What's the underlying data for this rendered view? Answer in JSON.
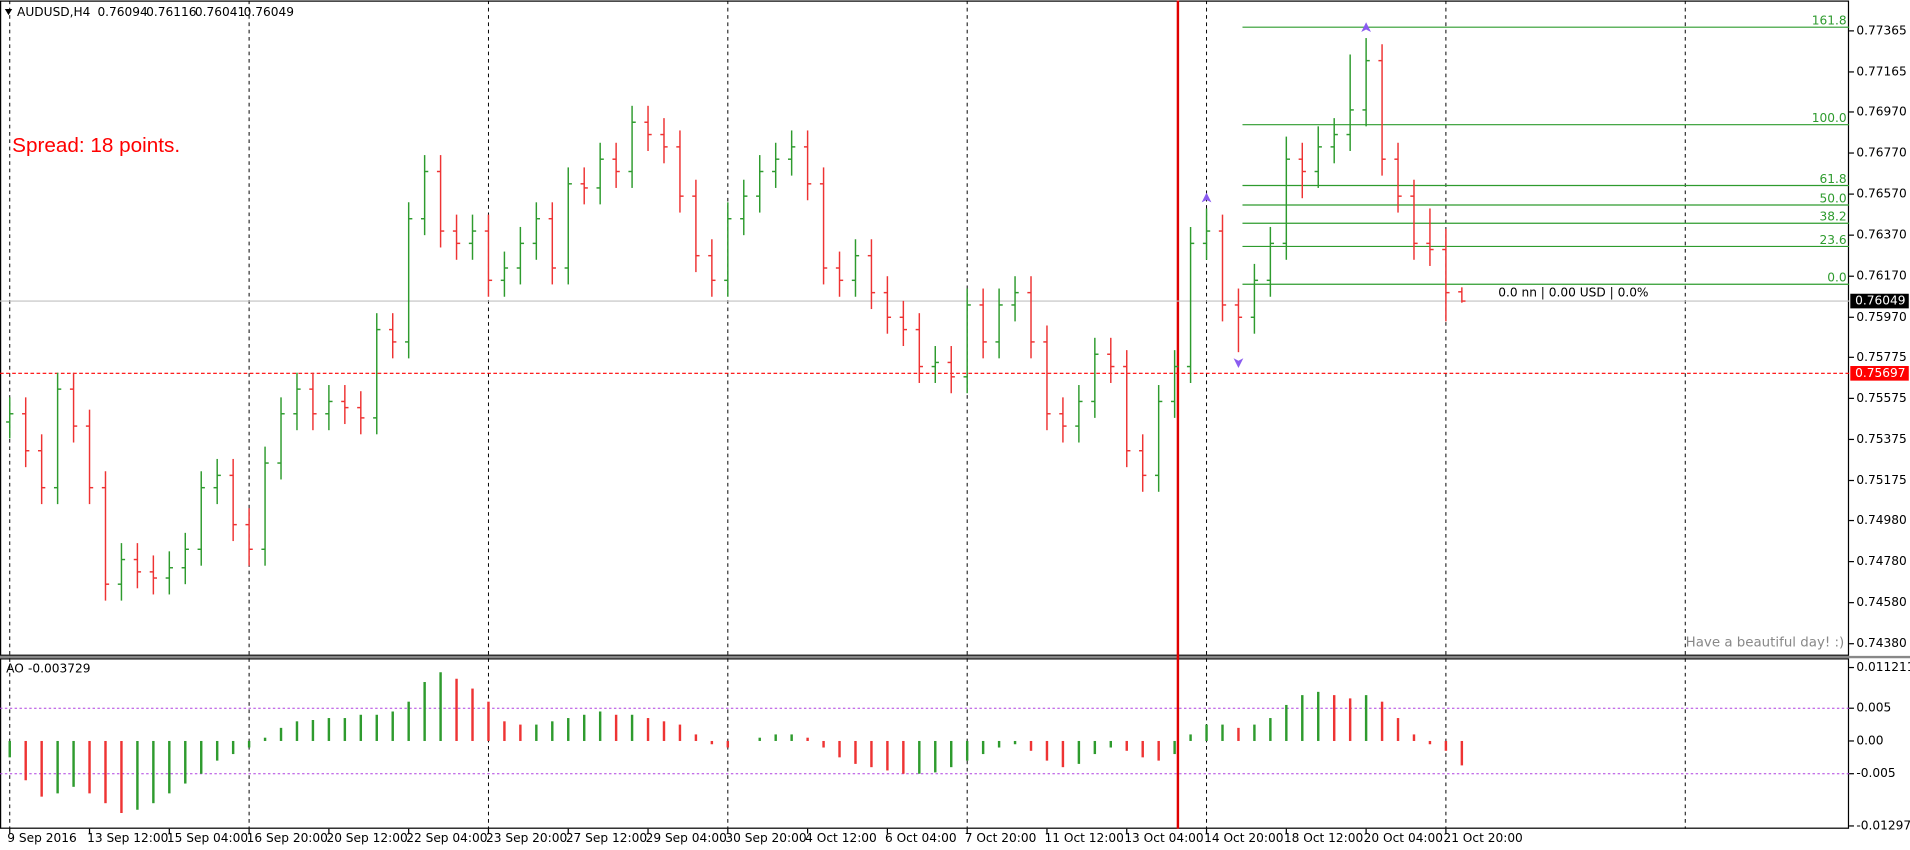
{
  "chart_data": {
    "type": "ohlc",
    "title": "AUDUSD,H4",
    "x_labels": [
      "9 Sep 2016",
      "13 Sep 12:00",
      "15 Sep 04:00",
      "16 Sep 20:00",
      "20 Sep 12:00",
      "22 Sep 04:00",
      "23 Sep 20:00",
      "27 Sep 12:00",
      "29 Sep 04:00",
      "30 Sep 20:00",
      "4 Oct 12:00",
      "6 Oct 04:00",
      "7 Oct 20:00",
      "11 Oct 12:00",
      "13 Oct 04:00",
      "14 Oct 20:00",
      "18 Oct 12:00",
      "20 Oct 04:00",
      "21 Oct 20:00"
    ],
    "open": [
      0.7546,
      0.755,
      0.7532,
      0.7514,
      0.7562,
      0.7544,
      0.7514,
      0.7467,
      0.7479,
      0.7473,
      0.747,
      0.7475,
      0.7484,
      0.7514,
      0.752,
      0.7496,
      0.7484,
      0.7526,
      0.755,
      0.7562,
      0.755,
      0.7556,
      0.7553,
      0.7548,
      0.7591,
      0.7585,
      0.7645,
      0.7668,
      0.7639,
      0.7633,
      0.7639,
      0.7615,
      0.7621,
      0.7633,
      0.7645,
      0.7621,
      0.7662,
      0.766,
      0.7674,
      0.7668,
      0.7692,
      0.7686,
      0.768,
      0.7656,
      0.7627,
      0.7615,
      0.7645,
      0.7656,
      0.7668,
      0.7674,
      0.768,
      0.7662,
      0.7621,
      0.7615,
      0.7627,
      0.7609,
      0.7597,
      0.7591,
      0.7573,
      0.7575,
      0.7568,
      0.7603,
      0.7585,
      0.7603,
      0.7609,
      0.7585,
      0.755,
      0.7544,
      0.7556,
      0.7579,
      0.7573,
      0.7532,
      0.752,
      0.7556,
      0.7573,
      0.7633,
      0.7639,
      0.7603,
      0.7597,
      0.7615,
      0.7633,
      0.7674,
      0.7668,
      0.768,
      0.7686,
      0.7698,
      0.7722,
      0.7674,
      0.7656,
      0.7633,
      0.763,
      0.76094
    ],
    "high": [
      0.7558,
      0.7558,
      0.754,
      0.757,
      0.757,
      0.7552,
      0.7522,
      0.7487,
      0.7487,
      0.7481,
      0.7483,
      0.7492,
      0.7522,
      0.7528,
      0.7528,
      0.7504,
      0.7534,
      0.7558,
      0.757,
      0.757,
      0.7564,
      0.7564,
      0.7561,
      0.7599,
      0.7599,
      0.7653,
      0.7676,
      0.7676,
      0.7647,
      0.7647,
      0.7647,
      0.7629,
      0.7641,
      0.7653,
      0.7653,
      0.767,
      0.767,
      0.7682,
      0.7682,
      0.77,
      0.77,
      0.7694,
      0.7688,
      0.7664,
      0.7635,
      0.7653,
      0.7664,
      0.7676,
      0.7682,
      0.7688,
      0.7688,
      0.767,
      0.7629,
      0.7635,
      0.7635,
      0.7617,
      0.7605,
      0.7599,
      0.7583,
      0.7583,
      0.7611,
      0.7611,
      0.7611,
      0.7617,
      0.7617,
      0.7593,
      0.7558,
      0.7564,
      0.7587,
      0.7587,
      0.7581,
      0.754,
      0.7564,
      0.7581,
      0.7641,
      0.765,
      0.7647,
      0.7611,
      0.7623,
      0.7641,
      0.7685,
      0.7682,
      0.769,
      0.7694,
      0.7725,
      0.7733,
      0.773,
      0.7682,
      0.7664,
      0.765,
      0.764,
      0.76116
    ],
    "low": [
      0.7538,
      0.7524,
      0.7506,
      0.7506,
      0.7536,
      0.7506,
      0.7459,
      0.7459,
      0.7465,
      0.7462,
      0.7462,
      0.7467,
      0.7476,
      0.7506,
      0.7488,
      0.7476,
      0.7476,
      0.7518,
      0.7542,
      0.7542,
      0.7542,
      0.7545,
      0.754,
      0.754,
      0.7577,
      0.7577,
      0.7637,
      0.7631,
      0.7625,
      0.7625,
      0.7607,
      0.7607,
      0.7613,
      0.7625,
      0.7613,
      0.7613,
      0.7652,
      0.7652,
      0.766,
      0.766,
      0.7678,
      0.7672,
      0.7648,
      0.7619,
      0.7607,
      0.7607,
      0.7637,
      0.7648,
      0.766,
      0.7666,
      0.7654,
      0.7613,
      0.7607,
      0.7607,
      0.7601,
      0.7589,
      0.7583,
      0.7565,
      0.7565,
      0.756,
      0.756,
      0.7577,
      0.7577,
      0.7595,
      0.7577,
      0.7542,
      0.7536,
      0.7536,
      0.7548,
      0.7565,
      0.7524,
      0.7512,
      0.7512,
      0.7548,
      0.7565,
      0.7625,
      0.7595,
      0.758,
      0.7589,
      0.7607,
      0.7625,
      0.7655,
      0.766,
      0.7672,
      0.7678,
      0.769,
      0.7666,
      0.7648,
      0.7625,
      0.7622,
      0.7595,
      0.76041
    ],
    "close": [
      0.755,
      0.7532,
      0.7514,
      0.7562,
      0.7544,
      0.7514,
      0.7467,
      0.7479,
      0.7473,
      0.747,
      0.7475,
      0.7484,
      0.7514,
      0.752,
      0.7496,
      0.7484,
      0.7526,
      0.755,
      0.7562,
      0.755,
      0.7556,
      0.7553,
      0.7548,
      0.7591,
      0.7585,
      0.7645,
      0.7668,
      0.7639,
      0.7633,
      0.7639,
      0.7615,
      0.7621,
      0.7633,
      0.7645,
      0.7621,
      0.7662,
      0.766,
      0.7674,
      0.7668,
      0.7692,
      0.7686,
      0.768,
      0.7656,
      0.7627,
      0.7615,
      0.7645,
      0.7656,
      0.7668,
      0.7674,
      0.768,
      0.7662,
      0.7621,
      0.7615,
      0.7627,
      0.7609,
      0.7597,
      0.7591,
      0.7573,
      0.7575,
      0.7568,
      0.7603,
      0.7585,
      0.7603,
      0.7609,
      0.7585,
      0.755,
      0.7544,
      0.7556,
      0.7579,
      0.7573,
      0.7532,
      0.752,
      0.7556,
      0.7573,
      0.7633,
      0.7639,
      0.7603,
      0.7597,
      0.7615,
      0.7633,
      0.7674,
      0.7668,
      0.768,
      0.7686,
      0.7698,
      0.7722,
      0.7674,
      0.7656,
      0.7633,
      0.763,
      0.7609,
      0.76049
    ],
    "up_color": "#2e9b2e",
    "down_color": "#ee3333",
    "fractal_color": "#8a5cf0",
    "ylim": [
      0.74321,
      0.77513
    ],
    "yticks": [
      0.77365,
      0.77165,
      {
        "value": 0.7697,
        "label": "0.76970"
      },
      {
        "value": 0.7677,
        "label": "0.76770"
      },
      {
        "value": 0.7657,
        "label": "0.76570"
      },
      {
        "value": 0.7637,
        "label": "0.76370"
      },
      {
        "value": 0.7617,
        "label": "0.76170"
      },
      {
        "value": 0.7597,
        "label": "0.75970"
      },
      0.75775,
      0.75575,
      0.75375,
      0.75175,
      {
        "value": 0.7498,
        "label": "0.74980"
      },
      {
        "value": 0.7478,
        "label": "0.74780"
      },
      {
        "value": 0.7458,
        "label": "0.74580"
      },
      {
        "value": 0.7438,
        "label": "0.74380"
      }
    ],
    "grid": true,
    "price_line": 0.75697,
    "annotations": {
      "spread": "Spread: 18 points.",
      "ruler": "0.0 nn | 0.00 USD | 0.0%",
      "greeting": "Have a beautiful day! :)"
    },
    "fibonacci": {
      "color": "#2e9b2e",
      "labels": [
        "161.8",
        "100.0",
        "61.8",
        "50.0",
        "38.2",
        "23.6",
        "0.0"
      ],
      "prices": [
        0.77383,
        0.76908,
        0.76612,
        0.76517,
        0.76428,
        0.76315,
        0.76131
      ]
    },
    "indicator": {
      "type": "histogram",
      "name": "AO",
      "values": [
        -0.0025,
        -0.006,
        -0.0085,
        -0.008,
        -0.007,
        -0.008,
        -0.0095,
        -0.011,
        -0.0105,
        -0.0095,
        -0.008,
        -0.0065,
        -0.005,
        -0.003,
        -0.002,
        -0.001,
        0.0005,
        0.002,
        0.003,
        0.0032,
        0.0035,
        0.0035,
        0.004,
        0.004,
        0.0045,
        0.006,
        0.009,
        0.0105,
        0.0095,
        0.008,
        0.006,
        0.003,
        0.0025,
        0.0025,
        0.003,
        0.0035,
        0.004,
        0.0045,
        0.004,
        0.004,
        0.0035,
        0.003,
        0.0025,
        0.001,
        -0.0005,
        -0.001,
        0,
        0.0005,
        0.001,
        0.001,
        0.0005,
        -0.001,
        -0.0025,
        -0.0035,
        -0.004,
        -0.0045,
        -0.005,
        -0.005,
        -0.0048,
        -0.004,
        -0.003,
        -0.002,
        -0.001,
        -0.0005,
        -0.0015,
        -0.003,
        -0.004,
        -0.0035,
        -0.002,
        -0.001,
        -0.0015,
        -0.0025,
        -0.003,
        -0.002,
        0.001,
        0.0025,
        0.0025,
        0.002,
        0.0025,
        0.0035,
        0.0055,
        0.007,
        0.0075,
        0.007,
        0.0065,
        0.007,
        0.006,
        0.0035,
        0.001,
        -0.0005,
        -0.0015,
        -0.003729
      ],
      "ylim": [
        -0.01341,
        0.01244
      ],
      "yticks": [
        0.011211,
        0.005,
        {
          "value": 0,
          "label": "0.00"
        },
        -0.005,
        -0.012975
      ],
      "levels": [
        0.005,
        -0.005
      ],
      "level_color": "#b040e0"
    }
  }
}
